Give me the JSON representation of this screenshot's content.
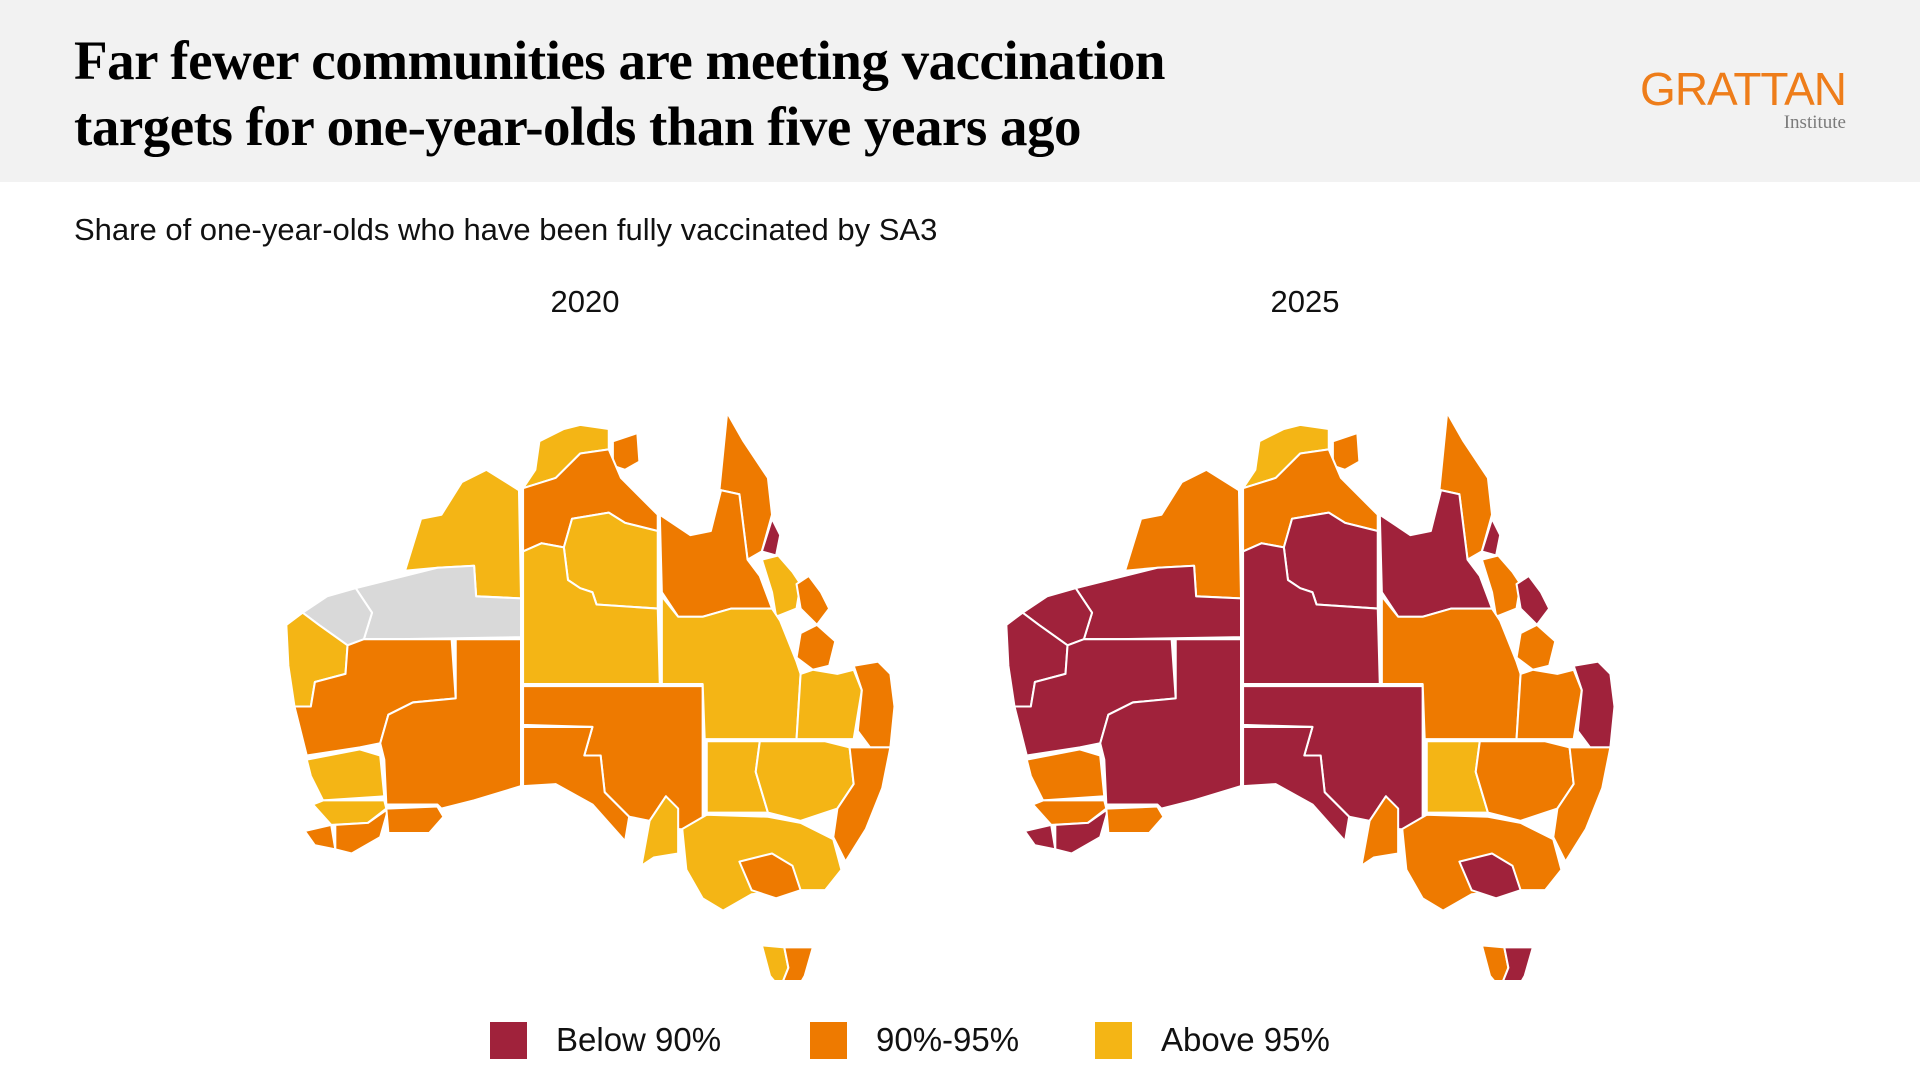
{
  "header": {
    "title_line1": "Far fewer communities are meeting vaccination",
    "title_line2": "targets for one-year-olds than five years ago",
    "logo_main": "GRATTAN",
    "logo_sub": "Institute",
    "logo_color": "#ee7d1a"
  },
  "subtitle": "Share of one-year-olds who have been fully vaccinated by SA3",
  "colors": {
    "below90": "#a0223b",
    "90to95": "#ee7a00",
    "above95": "#f4b515",
    "nodata": "#d9d9d9"
  },
  "legend": [
    {
      "label": "Below 90%",
      "color": "#a0223b"
    },
    {
      "label": "90%-95%",
      "color": "#ee7a00"
    },
    {
      "label": "Above 95%",
      "color": "#f4b515"
    }
  ],
  "chart_data": {
    "type": "map",
    "title": "Far fewer communities are meeting vaccination targets for one-year-olds than five years ago",
    "subtitle": "Share of one-year-olds who have been fully vaccinated by SA3",
    "panels": [
      {
        "label": "2020",
        "summary": "Mostly above 95% (yellow) or 90%-95% (orange); very few SA3s below 90%; some no-data (grey) areas in northern WA, Queensland and NSW.",
        "regions": {
          "wa_kimberley": "above95",
          "wa_pilbara_east": "nodata",
          "wa_pilbara_west": "nodata",
          "wa_gascoyne": "above95",
          "wa_midwest": "90to95",
          "wa_goldfields": "90to95",
          "wa_wheatbelt": "above95",
          "wa_perth": "above95",
          "wa_southwest": "90to95",
          "wa_albany": "90to95",
          "wa_esperance": "90to95",
          "nt_darwin": "above95",
          "nt_arnhem": "90to95",
          "nt_katherine": "90to95",
          "nt_barkly": "above95",
          "nt_alice": "above95",
          "sa_outback": "90to95",
          "sa_eyre": "90to95",
          "sa_south": "above95",
          "qld_cape": "90to95",
          "qld_gulf": "90to95",
          "qld_cairns": "below90",
          "qld_townsville": "above95",
          "qld_mackay": "90to95",
          "qld_central": "90to95",
          "qld_outback": "above95",
          "qld_darling": "above95",
          "qld_seq": "90to95",
          "nsw_west": "above95",
          "nsw_central": "above95",
          "nsw_coast": "90to95",
          "vic": "above95",
          "vic_melb": "90to95",
          "tas_west": "above95",
          "tas_east": "90to95"
        }
      },
      {
        "label": "2025",
        "summary": "Large majority of inland and remote SA3s now below 90% (dark red); most others 90%-95%; few remain above 95%.",
        "regions": {
          "wa_kimberley": "90to95",
          "wa_pilbara_east": "below90",
          "wa_pilbara_west": "below90",
          "wa_gascoyne": "below90",
          "wa_midwest": "below90",
          "wa_goldfields": "below90",
          "wa_wheatbelt": "90to95",
          "wa_perth": "90to95",
          "wa_southwest": "below90",
          "wa_albany": "below90",
          "wa_esperance": "90to95",
          "nt_darwin": "above95",
          "nt_arnhem": "90to95",
          "nt_katherine": "90to95",
          "nt_barkly": "below90",
          "nt_alice": "below90",
          "sa_outback": "below90",
          "sa_eyre": "below90",
          "sa_south": "90to95",
          "qld_cape": "90to95",
          "qld_gulf": "below90",
          "qld_cairns": "below90",
          "qld_townsville": "90to95",
          "qld_mackay": "below90",
          "qld_central": "90to95",
          "qld_outback": "90to95",
          "qld_darling": "90to95",
          "qld_seq": "below90",
          "nsw_west": "above95",
          "nsw_central": "90to95",
          "nsw_coast": "90to95",
          "vic": "90to95",
          "vic_melb": "below90",
          "tas_west": "90to95",
          "tas_east": "below90"
        }
      }
    ],
    "legend": [
      "Below 90%",
      "90%-95%",
      "Above 95%"
    ]
  }
}
